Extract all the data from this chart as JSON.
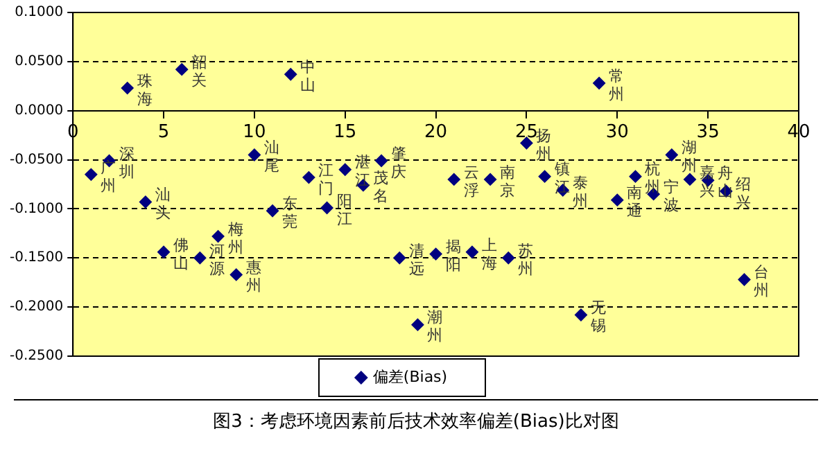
{
  "chart_data": {
    "type": "scatter",
    "xlim": [
      0,
      40
    ],
    "xticks": [
      0,
      5,
      10,
      15,
      20,
      25,
      30,
      35,
      40
    ],
    "ylim": [
      -0.25,
      0.1
    ],
    "yticks": [
      {
        "value": -0.25,
        "label": "-0.2500"
      },
      {
        "value": -0.2,
        "label": "-0.2000"
      },
      {
        "value": -0.15,
        "label": "-0.1500"
      },
      {
        "value": -0.1,
        "label": "-0.1000"
      },
      {
        "value": -0.05,
        "label": "-0.0500"
      },
      {
        "value": 0,
        "label": "0.0000"
      },
      {
        "value": 0.05,
        "label": "0.0500"
      },
      {
        "value": 0.1,
        "label": "0.1000"
      }
    ],
    "grid": "y",
    "legend": "bottom",
    "marker": "diamond",
    "x": [
      1,
      2,
      3,
      4,
      5,
      6,
      7,
      8,
      9,
      10,
      11,
      12,
      13,
      14,
      15,
      16,
      17,
      18,
      19,
      20,
      21,
      22,
      23,
      24,
      25,
      26,
      27,
      28,
      29,
      30,
      31,
      32,
      33,
      34,
      35,
      36,
      37
    ],
    "series": [
      {
        "name": "偏差(Bias)",
        "color": "#000080",
        "values": [
          -0.065,
          -0.051,
          0.023,
          -0.093,
          -0.144,
          0.042,
          -0.15,
          -0.128,
          -0.167,
          -0.045,
          -0.102,
          0.037,
          -0.068,
          -0.099,
          -0.06,
          -0.076,
          -0.051,
          -0.15,
          -0.218,
          -0.146,
          -0.07,
          -0.144,
          -0.07,
          -0.15,
          -0.033,
          -0.067,
          -0.081,
          -0.208,
          0.028,
          -0.091,
          -0.067,
          -0.085,
          -0.045,
          -0.07,
          -0.071,
          -0.082,
          -0.172
        ]
      }
    ],
    "annotations": [
      {
        "text": "广州",
        "x": 1,
        "y": -0.065
      },
      {
        "text": "深圳",
        "x": 2,
        "y": -0.051
      },
      {
        "text": "珠海",
        "x": 3,
        "y": 0.023
      },
      {
        "text": "汕头",
        "x": 4,
        "y": -0.093
      },
      {
        "text": "佛山",
        "x": 5,
        "y": -0.144
      },
      {
        "text": "韶关",
        "x": 6,
        "y": 0.042
      },
      {
        "text": "河源",
        "x": 7,
        "y": -0.15
      },
      {
        "text": "梅州",
        "x": 8,
        "y": -0.128
      },
      {
        "text": "惠州",
        "x": 9,
        "y": -0.167
      },
      {
        "text": "汕尾",
        "x": 10,
        "y": -0.045
      },
      {
        "text": "东莞",
        "x": 11,
        "y": -0.102
      },
      {
        "text": "中山",
        "x": 12,
        "y": 0.037
      },
      {
        "text": "江门",
        "x": 13,
        "y": -0.068
      },
      {
        "text": "阳江",
        "x": 14,
        "y": -0.099
      },
      {
        "text": "湛江",
        "x": 15,
        "y": -0.06
      },
      {
        "text": "茂名",
        "x": 16,
        "y": -0.076
      },
      {
        "text": "肇庆",
        "x": 17,
        "y": -0.051
      },
      {
        "text": "清远",
        "x": 18,
        "y": -0.15
      },
      {
        "text": "潮州",
        "x": 19,
        "y": -0.218
      },
      {
        "text": "揭阳",
        "x": 20,
        "y": -0.146
      },
      {
        "text": "云浮",
        "x": 21,
        "y": -0.07
      },
      {
        "text": "上海",
        "x": 22,
        "y": -0.144
      },
      {
        "text": "南京",
        "x": 23,
        "y": -0.07
      },
      {
        "text": "苏州",
        "x": 24,
        "y": -0.15
      },
      {
        "text": "扬州",
        "x": 25,
        "y": -0.033
      },
      {
        "text": "镇江",
        "x": 26,
        "y": -0.067
      },
      {
        "text": "泰州",
        "x": 27,
        "y": -0.081
      },
      {
        "text": "无锡",
        "x": 28,
        "y": -0.208
      },
      {
        "text": "常州",
        "x": 29,
        "y": 0.028
      },
      {
        "text": "南通",
        "x": 30,
        "y": -0.091
      },
      {
        "text": "杭州",
        "x": 31,
        "y": -0.067
      },
      {
        "text": "宁波",
        "x": 32,
        "y": -0.085
      },
      {
        "text": "湖州",
        "x": 33,
        "y": -0.045
      },
      {
        "text": "嘉兴",
        "x": 34,
        "y": -0.07
      },
      {
        "text": "舟山",
        "x": 35,
        "y": -0.071
      },
      {
        "text": "绍兴",
        "x": 36,
        "y": -0.082
      },
      {
        "text": "台州",
        "x": 37,
        "y": -0.172
      },
      "图3：考虑环境因素前后技术效率偏差(Bias)比对图"
    ]
  }
}
